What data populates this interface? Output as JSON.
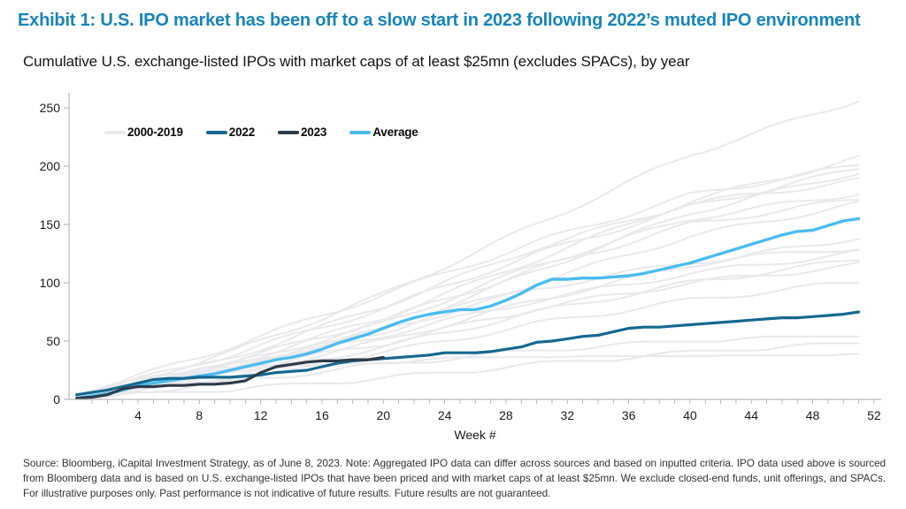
{
  "header": {
    "title": "Exhibit 1: U.S. IPO market has been off to a slow start in 2023 following 2022’s muted IPO environment",
    "subtitle": "Cumulative U.S. exchange-listed IPOs with market caps of at least $25mn (excludes SPACs), by year"
  },
  "footer": {
    "text": "Source: Bloomberg, iCapital Investment Strategy, as of June 8, 2023. Note: Aggregated IPO data can differ across sources and based on inputted criteria. IPO data used above is sourced from Bloomberg data and is based on U.S. exchange-listed IPOs that have been priced and with market caps of at least $25mn. We exclude closed-end funds, unit offerings, and SPACs. For illustrative purposes only. Past performance is not indicative of future results. Future results are not guaranteed."
  },
  "colors": {
    "title_blue": "#1784BC",
    "line_2022": "#15688F",
    "line_2023": "#2E3B4A",
    "line_average": "#4BBCEE",
    "line_history": "#E9E9EC",
    "axis": "#B9B9BC"
  },
  "chart_data": {
    "type": "line",
    "title": "Cumulative U.S. exchange-listed IPOs with market caps of at least $25mn (excludes SPACs), by year",
    "xlabel": "Week #",
    "ylabel": "",
    "xlim": [
      0,
      53
    ],
    "ylim": [
      0,
      263
    ],
    "grid": false,
    "x_ticks": [
      4,
      8,
      12,
      16,
      20,
      24,
      28,
      32,
      36,
      40,
      44,
      48,
      52
    ],
    "y_ticks": [
      0,
      50,
      100,
      150,
      200,
      250
    ],
    "legend_position": "top-left",
    "legend": [
      {
        "label": "2000-2019",
        "color": "#E9E9EC"
      },
      {
        "label": "2022",
        "color": "#15688F"
      },
      {
        "label": "2023",
        "color": "#2E3B4A"
      },
      {
        "label": "Average",
        "color": "#4BBCEE"
      }
    ],
    "series": [
      {
        "name": "Average",
        "color": "#4BBCEE",
        "width": 3.4,
        "start_week": 0,
        "values": [
          1,
          3,
          5,
          8,
          12,
          14,
          16,
          18,
          20,
          22,
          25,
          28,
          31,
          34,
          36,
          39,
          43,
          48,
          52,
          56,
          61,
          66,
          70,
          73,
          75,
          77,
          77,
          80,
          85,
          91,
          98,
          103,
          103,
          104,
          104,
          105,
          106,
          108,
          111,
          114,
          117,
          121,
          125,
          129,
          133,
          137,
          141,
          144,
          145,
          149,
          153,
          155
        ]
      },
      {
        "name": "2022",
        "color": "#15688F",
        "width": 3.2,
        "start_week": 0,
        "values": [
          4,
          6,
          8,
          11,
          14,
          17,
          18,
          18,
          19,
          19,
          19,
          20,
          21,
          23,
          24,
          25,
          28,
          31,
          33,
          34,
          35,
          36,
          37,
          38,
          40,
          40,
          40,
          41,
          43,
          45,
          49,
          50,
          52,
          54,
          55,
          58,
          61,
          62,
          62,
          63,
          64,
          65,
          66,
          67,
          68,
          69,
          70,
          70,
          71,
          72,
          73,
          75
        ]
      },
      {
        "name": "2023",
        "color": "#2E3B4A",
        "width": 3.2,
        "start_week": 0,
        "values": [
          1,
          2,
          4,
          9,
          11,
          11,
          12,
          12,
          13,
          13,
          14,
          16,
          23,
          28,
          30,
          32,
          33,
          33,
          34,
          34,
          36
        ]
      }
    ],
    "background_series": {
      "name": "2000-2019",
      "color": "#E9E9EC",
      "width": 2,
      "anchor_weeks": [
        0,
        10,
        20,
        30,
        40,
        51
      ],
      "lines": [
        [
          2,
          40,
          90,
          150,
          210,
          257
        ],
        [
          2,
          30,
          70,
          120,
          170,
          207
        ],
        [
          3,
          45,
          90,
          135,
          175,
          201
        ],
        [
          2,
          25,
          60,
          110,
          160,
          195
        ],
        [
          2,
          35,
          80,
          130,
          168,
          188
        ],
        [
          3,
          38,
          78,
          125,
          165,
          198
        ],
        [
          3,
          30,
          65,
          115,
          155,
          177
        ],
        [
          2,
          28,
          58,
          100,
          140,
          168
        ],
        [
          2,
          32,
          68,
          112,
          150,
          172
        ],
        [
          2,
          22,
          50,
          85,
          115,
          139
        ],
        [
          3,
          26,
          55,
          85,
          108,
          126
        ],
        [
          2,
          20,
          45,
          75,
          100,
          120
        ],
        [
          2,
          28,
          60,
          95,
          118,
          130
        ],
        [
          2,
          24,
          48,
          78,
          100,
          115
        ],
        [
          2,
          18,
          40,
          65,
          85,
          101
        ],
        [
          1,
          15,
          30,
          42,
          50,
          54
        ],
        [
          1,
          20,
          33,
          35,
          35,
          37
        ],
        [
          1,
          8,
          18,
          30,
          40,
          48
        ]
      ]
    }
  }
}
